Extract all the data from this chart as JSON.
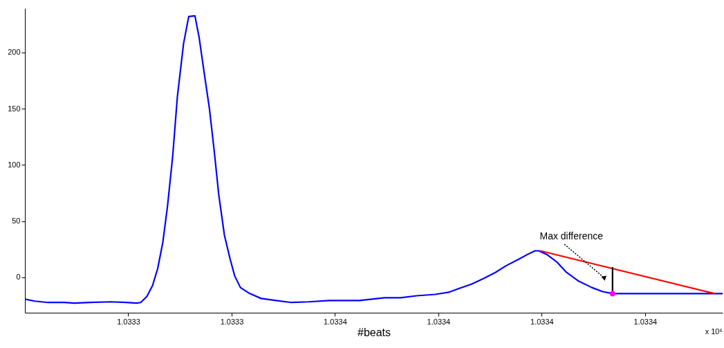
{
  "chart_data": {
    "type": "line",
    "xlabel": "#beats",
    "xlim": [
      1.0333,
      1.033435
    ],
    "ylim": [
      -31.5,
      239.4
    ],
    "xticks": [
      {
        "value": 1.03332,
        "label": "1.0333"
      },
      {
        "value": 1.03334,
        "label": "1.0333"
      },
      {
        "value": 1.03336,
        "label": "1.0334"
      },
      {
        "value": 1.03338,
        "label": "1.0334"
      },
      {
        "value": 1.0334,
        "label": "1.0334"
      },
      {
        "value": 1.03342,
        "label": "1.0334"
      }
    ],
    "yticks": [
      0,
      50,
      100,
      150,
      200
    ],
    "grid": false,
    "annotations": [
      "Max difference",
      "x 10⁶"
    ],
    "series": [
      {
        "color": "#0000ff",
        "x": [
          1.0333,
          1.0333019,
          1.0333045,
          1.0333076,
          1.0333096,
          1.0333126,
          1.0333166,
          1.0333196,
          1.0333216,
          1.0333224,
          1.0333236,
          1.0333247,
          1.0333257,
          1.0333267,
          1.0333276,
          1.0333286,
          1.0333295,
          1.0333307,
          1.0333317,
          1.0333329,
          1.0333337,
          1.0333346,
          1.0333357,
          1.0333366,
          1.0333375,
          1.0333386,
          1.0333397,
          1.0333406,
          1.0333417,
          1.0333433,
          1.0333457,
          1.0333486,
          1.0333516,
          1.0333549,
          1.0333589,
          1.0333647,
          1.0333696,
          1.0333727,
          1.0333758,
          1.0333794,
          1.033382,
          1.0333838,
          1.0333864,
          1.0333887,
          1.033391,
          1.0333931,
          1.0333954,
          1.0333971,
          1.0333987,
          1.0333994,
          1.0334011,
          1.033403,
          1.0334047,
          1.033407,
          1.0334097,
          1.0334118,
          1.0334137,
          1.033435
        ],
        "values": [
          -19.4,
          -21.2,
          -22.4,
          -22.4,
          -23.0,
          -22.4,
          -21.8,
          -22.4,
          -23.0,
          -22.4,
          -17.0,
          -7.3,
          7.9,
          31.5,
          63.6,
          107.9,
          160.6,
          207.9,
          232.1,
          232.7,
          213.9,
          184.8,
          150.3,
          113.9,
          73.9,
          37.6,
          16.4,
          1.2,
          -9.1,
          -13.9,
          -18.8,
          -20.6,
          -22.4,
          -21.8,
          -20.6,
          -20.6,
          -18.2,
          -18.2,
          -16.4,
          -15.2,
          -13.3,
          -10.3,
          -6.1,
          -1.2,
          4.2,
          10.3,
          15.8,
          20.0,
          23.6,
          23.6,
          20.0,
          13.3,
          4.8,
          -3.0,
          -9.1,
          -12.7,
          -14.5,
          -14.5
        ]
      },
      {
        "color": "#ff0000",
        "x": [
          1.0333997,
          1.0334335
        ],
        "values": [
          23.6,
          -14.5
        ]
      },
      {
        "color": "#000000",
        "x": [
          1.0334137,
          1.0334137
        ],
        "values": [
          -14.5,
          9.1
        ]
      },
      {
        "type": "scatter",
        "color": "#ff00ff",
        "marker": "circle",
        "x": [
          1.0334137
        ],
        "values": [
          -14.5
        ]
      }
    ]
  }
}
